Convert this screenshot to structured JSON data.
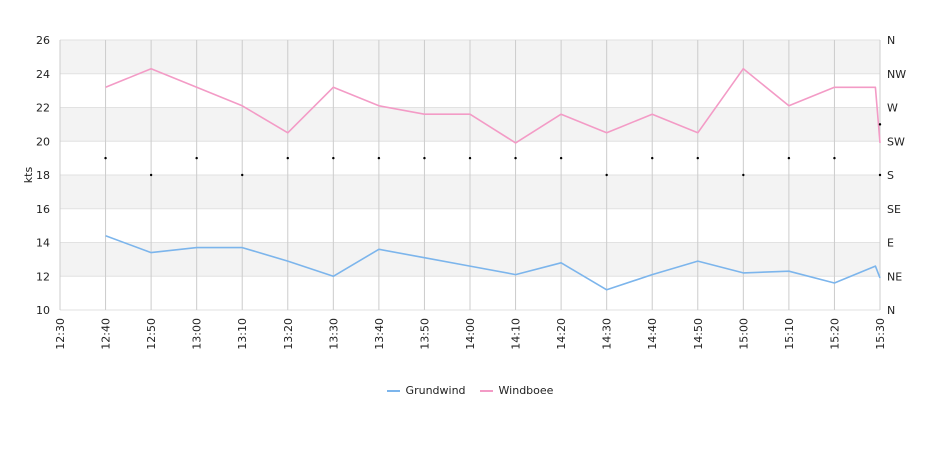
{
  "chart_data": {
    "type": "line",
    "ylabel": "kts",
    "ylim": [
      10,
      26
    ],
    "yticks": [
      10,
      12,
      14,
      16,
      18,
      20,
      22,
      24,
      26
    ],
    "xticks": [
      "12:30",
      "12:40",
      "12:50",
      "13:00",
      "13:10",
      "13:20",
      "13:30",
      "13:40",
      "13:50",
      "14:00",
      "14:10",
      "14:20",
      "14:30",
      "14:40",
      "14:50",
      "15:00",
      "15:10",
      "15:20",
      "15:30"
    ],
    "right_axis": {
      "labels": [
        "N",
        "NE",
        "E",
        "SE",
        "S",
        "SW",
        "W",
        "NW",
        "N"
      ]
    },
    "grid": true,
    "legend_position": "bottom",
    "series": [
      {
        "name": "Grundwind",
        "color": "#7cb5ec",
        "points": [
          {
            "x": "12:40",
            "y": 14.4
          },
          {
            "x": "12:50",
            "y": 13.4
          },
          {
            "x": "13:00",
            "y": 13.7
          },
          {
            "x": "13:10",
            "y": 13.7
          },
          {
            "x": "13:20",
            "y": 12.9
          },
          {
            "x": "13:30",
            "y": 12.0
          },
          {
            "x": "13:40",
            "y": 13.6
          },
          {
            "x": "13:50",
            "y": 13.1
          },
          {
            "x": "14:00",
            "y": 12.6
          },
          {
            "x": "14:10",
            "y": 12.1
          },
          {
            "x": "14:20",
            "y": 12.8
          },
          {
            "x": "14:30",
            "y": 11.2
          },
          {
            "x": "14:40",
            "y": 12.1
          },
          {
            "x": "14:50",
            "y": 12.9
          },
          {
            "x": "15:00",
            "y": 12.2
          },
          {
            "x": "15:10",
            "y": 12.3
          },
          {
            "x": "15:20",
            "y": 11.6
          },
          {
            "x": "15:29",
            "y": 12.6
          },
          {
            "x": "15:30",
            "y": 11.9
          }
        ]
      },
      {
        "name": "Windboee",
        "color": "#f39bc6",
        "points": [
          {
            "x": "12:40",
            "y": 23.2
          },
          {
            "x": "12:50",
            "y": 24.3
          },
          {
            "x": "13:00",
            "y": 23.2
          },
          {
            "x": "13:10",
            "y": 22.1
          },
          {
            "x": "13:20",
            "y": 20.5
          },
          {
            "x": "13:30",
            "y": 23.2
          },
          {
            "x": "13:40",
            "y": 22.1
          },
          {
            "x": "13:50",
            "y": 21.6
          },
          {
            "x": "14:00",
            "y": 21.6
          },
          {
            "x": "14:10",
            "y": 19.9
          },
          {
            "x": "14:20",
            "y": 21.6
          },
          {
            "x": "14:30",
            "y": 20.5
          },
          {
            "x": "14:40",
            "y": 21.6
          },
          {
            "x": "14:50",
            "y": 20.5
          },
          {
            "x": "15:00",
            "y": 24.3
          },
          {
            "x": "15:10",
            "y": 22.1
          },
          {
            "x": "15:20",
            "y": 23.2
          },
          {
            "x": "15:29",
            "y": 23.2
          },
          {
            "x": "15:30",
            "y": 19.9
          }
        ]
      }
    ],
    "direction_markers": {
      "color": "#000000",
      "points": [
        {
          "x": "12:40",
          "y": 19.0
        },
        {
          "x": "12:50",
          "y": 18.0
        },
        {
          "x": "13:00",
          "y": 19.0
        },
        {
          "x": "13:10",
          "y": 18.0
        },
        {
          "x": "13:20",
          "y": 19.0
        },
        {
          "x": "13:30",
          "y": 19.0
        },
        {
          "x": "13:40",
          "y": 19.0
        },
        {
          "x": "13:50",
          "y": 19.0
        },
        {
          "x": "14:00",
          "y": 19.0
        },
        {
          "x": "14:10",
          "y": 19.0
        },
        {
          "x": "14:20",
          "y": 19.0
        },
        {
          "x": "14:30",
          "y": 18.0
        },
        {
          "x": "14:40",
          "y": 19.0
        },
        {
          "x": "14:50",
          "y": 19.0
        },
        {
          "x": "15:00",
          "y": 18.0
        },
        {
          "x": "15:10",
          "y": 19.0
        },
        {
          "x": "15:20",
          "y": 19.0
        },
        {
          "x": "15:30",
          "y": 21.0
        },
        {
          "x": "15:30",
          "y": 18.0
        }
      ]
    }
  }
}
